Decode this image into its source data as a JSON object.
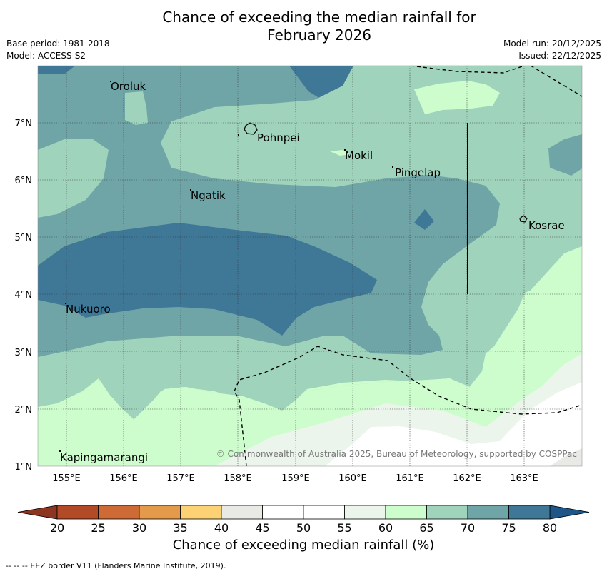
{
  "title": {
    "line1": "Chance of exceeding the median rainfall for",
    "line2": "February 2026"
  },
  "meta_left": {
    "base_period": "Base period: 1981-2018",
    "model": "Model: ACCESS-S2"
  },
  "meta_right": {
    "model_run": "Model run: 20/12/2025",
    "issued": "Issued: 22/12/2025"
  },
  "map": {
    "lat_labels": [
      "7°N",
      "6°N",
      "5°N",
      "4°N",
      "3°N",
      "2°N",
      "1°N"
    ],
    "lon_labels": [
      "155°E",
      "156°E",
      "157°E",
      "158°E",
      "159°E",
      "160°E",
      "161°E",
      "162°E",
      "163°E"
    ],
    "places": [
      "Oroluk",
      "Pohnpei",
      "Mokil",
      "Pingelap",
      "Ngatik",
      "Kosrae",
      "Nukuoro",
      "Kapingamarangi"
    ],
    "copyright": "© Commonwealth of Australia 2025, Bureau of Meteorology, supported by COSPPac"
  },
  "colorbar": {
    "ticks": [
      "20",
      "25",
      "30",
      "35",
      "40",
      "45",
      "50",
      "55",
      "60",
      "65",
      "70",
      "75",
      "80"
    ],
    "colors": [
      "#b24a28",
      "#cd6a35",
      "#e39a4a",
      "#fdd274",
      "#e9e9e6",
      "#ffffff",
      "#ffffff",
      "#ebf5eb",
      "#cdfdcd",
      "#9fd3bc",
      "#6fa5a6",
      "#3f7797"
    ],
    "under_color": "#8c3521",
    "over_color": "#1f5688",
    "label": "Chance of exceeding median rainfall (%)"
  },
  "footnote": "--  --  -- EEZ border V11 (Flanders Marine Institute, 2019)."
}
